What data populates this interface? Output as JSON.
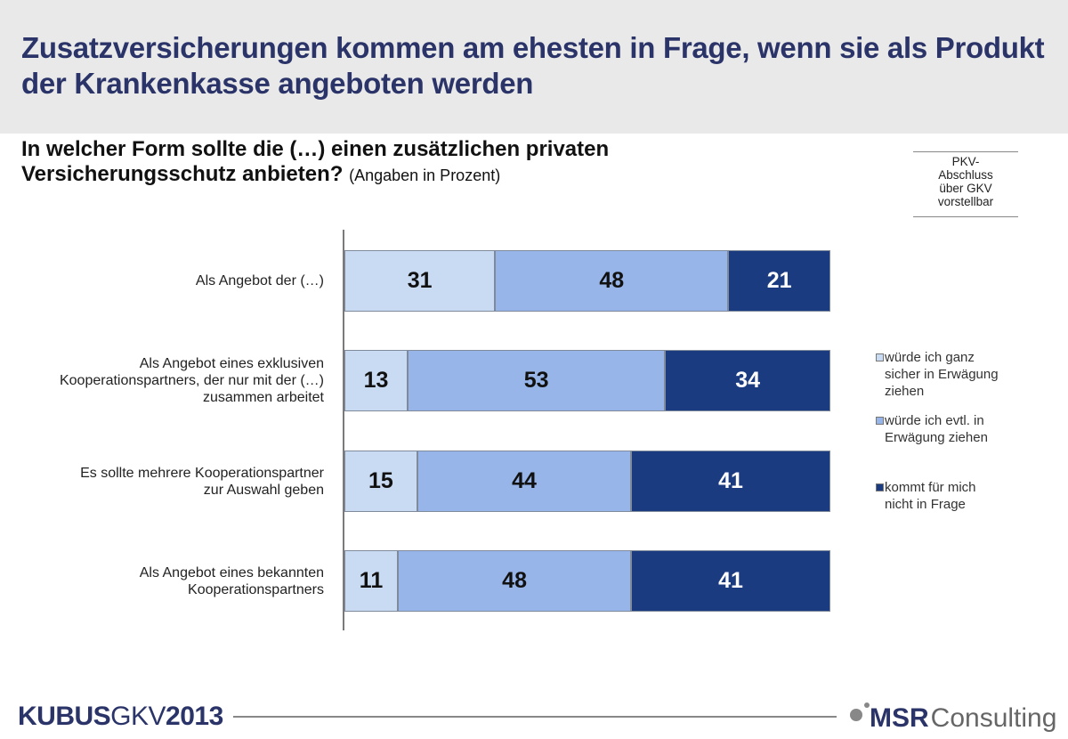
{
  "header": {
    "title": "Zusatzversicherungen kommen am ehesten in Frage, wenn sie als Produkt der Krankenkasse angeboten werden"
  },
  "question": {
    "text": "In welcher Form sollte die (…) einen zusätzlichen privaten Versicherungsschutz anbieten?",
    "note": "(Angaben in Prozent)"
  },
  "pkv_box": {
    "lines": [
      "PKV-",
      "Abschluss",
      "über GKV",
      "vorstellbar"
    ]
  },
  "colors": {
    "light": "#c9dbf3",
    "mid": "#97b5e8",
    "dark": "#1b3b80",
    "title": "#2b3468"
  },
  "chart_data": {
    "type": "bar",
    "orientation": "horizontal",
    "stacked": true,
    "title": "In welcher Form sollte die (…) einen zusätzlichen privaten Versicherungsschutz anbieten? (Angaben in Prozent)",
    "xlabel": "",
    "ylabel": "",
    "xlim": [
      0,
      100
    ],
    "grid": false,
    "legend_position": "right",
    "categories": [
      [
        "Als Angebot der (…)"
      ],
      [
        "Als Angebot eines exklusiven",
        "Kooperationspartners, der nur mit der (…)",
        "zusammen arbeitet"
      ],
      [
        "Es sollte mehrere Kooperationspartner",
        "zur Auswahl geben"
      ],
      [
        "Als Angebot eines bekannten",
        "Kooperationspartners"
      ]
    ],
    "series": [
      {
        "name": "würde ich ganz sicher in Erwägung ziehen",
        "legend_lines": [
          "würde ich ganz",
          "sicher in Erwägung",
          "ziehen"
        ],
        "color": "#c9dbf3",
        "label_color": "#111111",
        "values": [
          31,
          13,
          15,
          11
        ]
      },
      {
        "name": "würde ich evtl. in Erwägung ziehen",
        "legend_lines": [
          "würde ich evtl. in",
          "Erwägung ziehen"
        ],
        "color": "#97b5e8",
        "label_color": "#111111",
        "values": [
          48,
          53,
          44,
          48
        ]
      },
      {
        "name": "kommt für mich nicht in Frage",
        "legend_lines": [
          "kommt für mich",
          "nicht in Frage"
        ],
        "color": "#1b3b80",
        "label_color": "#ffffff",
        "values": [
          21,
          34,
          41,
          41
        ]
      }
    ]
  },
  "footer": {
    "brand_bold": "KUBUS",
    "brand_thin": "GKV",
    "brand_year": "2013",
    "company_bold": "MSR",
    "company_thin": "Consulting"
  }
}
